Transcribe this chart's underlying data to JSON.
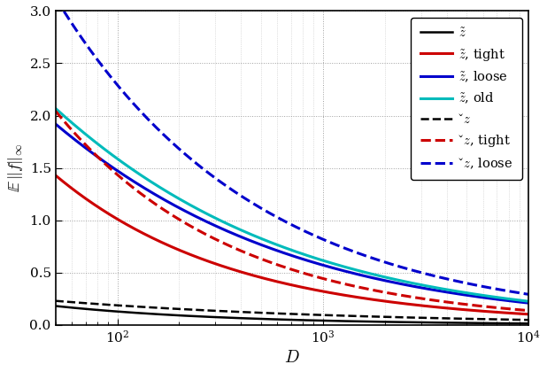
{
  "title": "",
  "xlabel": "$D$",
  "ylabel": "$\\mathbb{E}\\,\\|f\\|_\\infty$",
  "xlim": [
    50,
    10000
  ],
  "ylim": [
    0.0,
    3.0
  ],
  "yticks": [
    0.0,
    0.5,
    1.0,
    1.5,
    2.0,
    2.5,
    3.0
  ],
  "legend_entries": [
    {
      "label": "$\\tilde{z}$",
      "color": "#000000",
      "linestyle": "solid",
      "linewidth": 1.8
    },
    {
      "label": "$\\tilde{z}$, tight",
      "color": "#cc0000",
      "linestyle": "solid",
      "linewidth": 2.2
    },
    {
      "label": "$\\tilde{z}$, loose",
      "color": "#0000cc",
      "linestyle": "solid",
      "linewidth": 2.2
    },
    {
      "label": "$\\tilde{z}$, old",
      "color": "#00bbbb",
      "linestyle": "solid",
      "linewidth": 2.2
    },
    {
      "label": "$\\check{z}$",
      "color": "#000000",
      "linestyle": "dashed",
      "linewidth": 1.8
    },
    {
      "label": "$\\check{z}$, tight",
      "color": "#cc0000",
      "linestyle": "dashed",
      "linewidth": 2.2
    },
    {
      "label": "$\\check{z}$, loose",
      "color": "#0000cc",
      "linestyle": "dashed",
      "linewidth": 2.2
    }
  ],
  "background_color": "#ffffff",
  "grid_color": "#888888"
}
